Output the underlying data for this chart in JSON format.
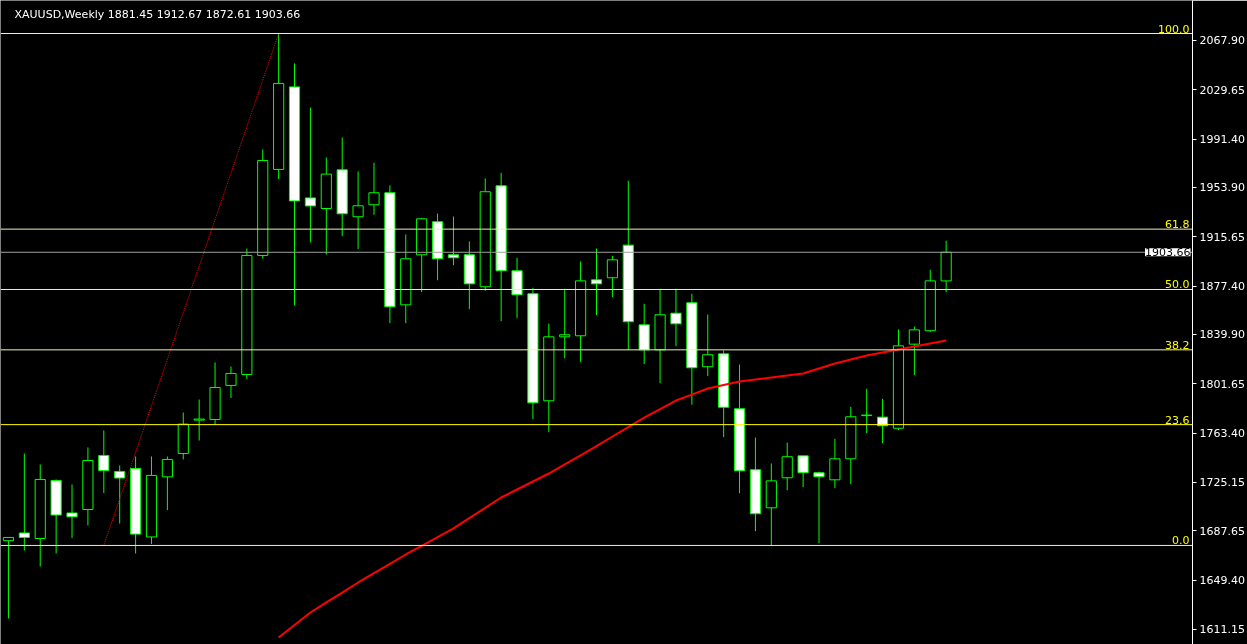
{
  "chart_data": {
    "type": "candlestick",
    "title": "XAUUSD,Weekly 1881.45 1912.67 1872.61 1903.66",
    "color": "#00ff00",
    "categories": [
      null,
      null,
      null,
      null,
      null,
      null,
      null,
      null,
      null,
      null,
      null,
      null,
      null,
      null,
      null,
      null,
      null,
      null,
      null,
      null,
      null,
      null,
      null,
      null,
      null,
      null,
      null,
      null,
      null,
      null,
      null,
      null,
      null,
      null,
      null,
      null,
      null,
      null,
      null,
      null,
      null,
      null,
      null,
      null,
      null,
      null,
      null,
      null,
      null,
      null,
      null,
      null,
      null,
      null,
      null,
      null,
      null,
      null,
      null,
      null
    ],
    "ohlc": [
      [
        1680.0,
        1682.5,
        1619.7,
        1682.5
      ],
      [
        1686.0,
        1747.6,
        1672.4,
        1682.5
      ],
      [
        1681.7,
        1739.1,
        1660.0,
        1727.5
      ],
      [
        1726.7,
        1727.5,
        1670.1,
        1699.9
      ],
      [
        1701.5,
        1723.6,
        1682.1,
        1698.5
      ],
      [
        1704.2,
        1752.3,
        1691.8,
        1742.2
      ],
      [
        1746.1,
        1765.5,
        1717.0,
        1734.4
      ],
      [
        1733.7,
        1738.3,
        1693.3,
        1728.6
      ],
      [
        1736.0,
        1745.3,
        1670.1,
        1685.1
      ],
      [
        1682.9,
        1745.3,
        1677.4,
        1730.6
      ],
      [
        1729.5,
        1745.3,
        1703.7,
        1743.0
      ],
      [
        1747.6,
        1779.4,
        1743.0,
        1770.4
      ],
      [
        1773.5,
        1789.5,
        1757.7,
        1774.3
      ],
      [
        1774.0,
        1818.2,
        1770.1,
        1798.8
      ],
      [
        1800.4,
        1815.1,
        1790.7,
        1809.7
      ],
      [
        1808.9,
        1906.6,
        1805.3,
        1901.2
      ],
      [
        1901.2,
        1983.4,
        1898.8,
        1974.8
      ],
      [
        1967.9,
        2073.3,
        1960.4,
        2034.6
      ],
      [
        2031.9,
        2050.1,
        1862.4,
        1943.5
      ],
      [
        1945.8,
        2015.9,
        1911.3,
        1939.6
      ],
      [
        1937.6,
        1977.2,
        1901.9,
        1964.3
      ],
      [
        1967.6,
        1992.7,
        1916.1,
        1933.5
      ],
      [
        1931.2,
        1966.3,
        1906.1,
        1939.7
      ],
      [
        1940.5,
        1973.1,
        1932.7,
        1949.8
      ],
      [
        1949.8,
        1955.5,
        1848.7,
        1861.4
      ],
      [
        1862.9,
        1917.5,
        1848.7,
        1898.6
      ],
      [
        1901.7,
        1930.4,
        1872.7,
        1929.6
      ],
      [
        1927.3,
        1933.7,
        1882.0,
        1898.6
      ],
      [
        1901.7,
        1931.4,
        1893.6,
        1899.4
      ],
      [
        1901.7,
        1912.0,
        1859.5,
        1879.2
      ],
      [
        1876.9,
        1960.9,
        1873.8,
        1950.6
      ],
      [
        1955.2,
        1965.3,
        1850.2,
        1889.3
      ],
      [
        1889.3,
        1899.4,
        1852.6,
        1870.7
      ],
      [
        1871.5,
        1876.1,
        1774.2,
        1786.9
      ],
      [
        1788.5,
        1848.4,
        1764.1,
        1838.1
      ],
      [
        1838.1,
        1875.3,
        1821.5,
        1839.7
      ],
      [
        1838.9,
        1896.5,
        1818.4,
        1881.5
      ],
      [
        1882.3,
        1906.6,
        1854.9,
        1879.2
      ],
      [
        1883.9,
        1900.9,
        1868.8,
        1897.8
      ],
      [
        1909.2,
        1959.1,
        1828.0,
        1849.8
      ],
      [
        1847.4,
        1863.7,
        1816.9,
        1828.0
      ],
      [
        1828.0,
        1875.3,
        1802.1,
        1855.2
      ],
      [
        1856.4,
        1875.3,
        1830.8,
        1848.2
      ],
      [
        1864.5,
        1871.5,
        1785.4,
        1814.1
      ],
      [
        1814.9,
        1855.4,
        1807.6,
        1824.2
      ],
      [
        1824.9,
        1827.5,
        1760.3,
        1783.5
      ],
      [
        1782.3,
        1816.6,
        1716.8,
        1734.2
      ],
      [
        1735.0,
        1760.0,
        1687.4,
        1700.9
      ],
      [
        1705.5,
        1739.9,
        1676.3,
        1726.4
      ],
      [
        1728.8,
        1756.1,
        1719.2,
        1745.1
      ],
      [
        1745.8,
        1745.8,
        1721.5,
        1732.7
      ],
      [
        1732.7,
        1733.5,
        1678.1,
        1729.6
      ],
      [
        1727.2,
        1759.0,
        1720.7,
        1743.5
      ],
      [
        1743.5,
        1783.8,
        1723.8,
        1776.1
      ],
      [
        1777.0,
        1797.8,
        1763.4,
        1777.4
      ],
      [
        1775.8,
        1790.0,
        1755.6,
        1769.1
      ],
      [
        1767.2,
        1843.8,
        1765.7,
        1831.1
      ],
      [
        1832.4,
        1846.1,
        1808.3,
        1843.5
      ],
      [
        1842.8,
        1890.1,
        1841.7,
        1881.5
      ],
      [
        1881.45,
        1912.67,
        1872.61,
        1903.66
      ]
    ],
    "series": [
      {
        "type": "line",
        "color": "#ff0000",
        "line_style": "solid",
        "values": [
          null,
          null,
          null,
          null,
          null,
          null,
          null,
          null,
          null,
          null,
          null,
          null,
          null,
          null,
          null,
          null,
          null,
          1604.9,
          1614.6,
          1624.3,
          1632.1,
          1639.8,
          1647.6,
          1654.8,
          1662.0,
          1669.3,
          1676.0,
          1682.7,
          1689.5,
          1697.5,
          1705.5,
          1713.5,
          1719.7,
          1725.9,
          1732.1,
          1739.1,
          1746.1,
          1753.4,
          1760.8,
          1768.1,
          1775.5,
          1782.1,
          1788.7,
          1793.3,
          1798.0,
          1800.7,
          1803.5,
          1805.0,
          1806.6,
          1808.1,
          1809.7,
          1813.5,
          1817.4,
          1820.5,
          1823.6,
          1826.0,
          1828.3,
          1830.6,
          1832.9,
          1835.2
        ]
      },
      {
        "type": "line",
        "color": "#ff0000",
        "line_style": "dotted",
        "values": [
          null,
          null,
          null,
          null,
          null,
          null,
          1676.3,
          null,
          null,
          null,
          null,
          null,
          null,
          null,
          null,
          null,
          null,
          2073.3,
          null,
          null,
          null,
          null,
          null,
          null,
          null,
          null,
          null,
          null,
          null,
          null,
          null,
          null,
          null,
          null,
          null,
          null,
          null,
          null,
          null,
          null,
          null,
          null,
          null,
          null,
          null,
          null,
          null,
          null,
          null,
          null,
          null,
          null,
          null,
          null,
          null,
          null,
          null,
          null,
          null,
          null
        ]
      }
    ],
    "ref_lines": [
      {
        "axis": "y",
        "value": 2073.3,
        "color": "#f0f0b0"
      },
      {
        "axis": "y",
        "value": 1921.6,
        "color": "#f0f0b0"
      },
      {
        "axis": "y",
        "value": 1874.8,
        "color": "#f0f0b0"
      },
      {
        "axis": "y",
        "value": 1828.0,
        "color": "#f0f0b0"
      },
      {
        "axis": "y",
        "value": 1770.0,
        "color": "#ffff00"
      },
      {
        "axis": "y",
        "value": 1676.3,
        "color": "#f0f0b0"
      },
      {
        "axis": "y",
        "value": 1903.66,
        "label": "1903.66",
        "color": "#a0a0a0"
      }
    ],
    "annotations": [
      {
        "text": "100.0",
        "y": 2073.3
      },
      {
        "text": "61.8",
        "y": 1921.6
      },
      {
        "text": "50.0",
        "y": 1874.8
      },
      {
        "text": "38.2",
        "y": 1828.0
      },
      {
        "text": "23.6",
        "y": 1770.0
      },
      {
        "text": "0.0",
        "y": 1676.3
      }
    ],
    "ylim": [
      1599.5,
      2098.9
    ],
    "yticks": [
      {
        "value": 1611.15,
        "label": "1611.15"
      },
      {
        "value": 1649.4,
        "label": "1649.40"
      },
      {
        "value": 1687.65,
        "label": "1687.65"
      },
      {
        "value": 1725.15,
        "label": "1725.15"
      },
      {
        "value": 1763.4,
        "label": "1763.40"
      },
      {
        "value": 1801.65,
        "label": "1801.65"
      },
      {
        "value": 1839.9,
        "label": "1839.90"
      },
      {
        "value": 1877.4,
        "label": "1877.40"
      },
      {
        "value": 1915.65,
        "label": "1915.65"
      },
      {
        "value": 1953.9,
        "label": "1953.90"
      },
      {
        "value": 1991.4,
        "label": "1991.40"
      },
      {
        "value": 2029.65,
        "label": "2029.65"
      },
      {
        "value": 2067.9,
        "label": "2067.90"
      }
    ],
    "tick_labels": "y",
    "grid": false
  }
}
